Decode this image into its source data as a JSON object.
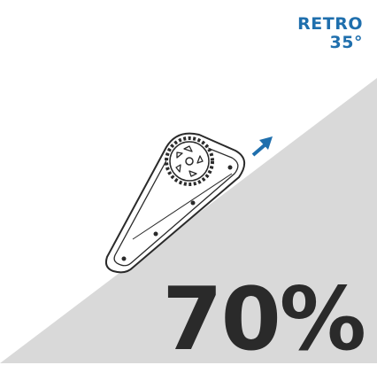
{
  "header": {
    "title": "RETRO",
    "subtitle": "35°"
  },
  "incline": {
    "label": "70%"
  }
}
